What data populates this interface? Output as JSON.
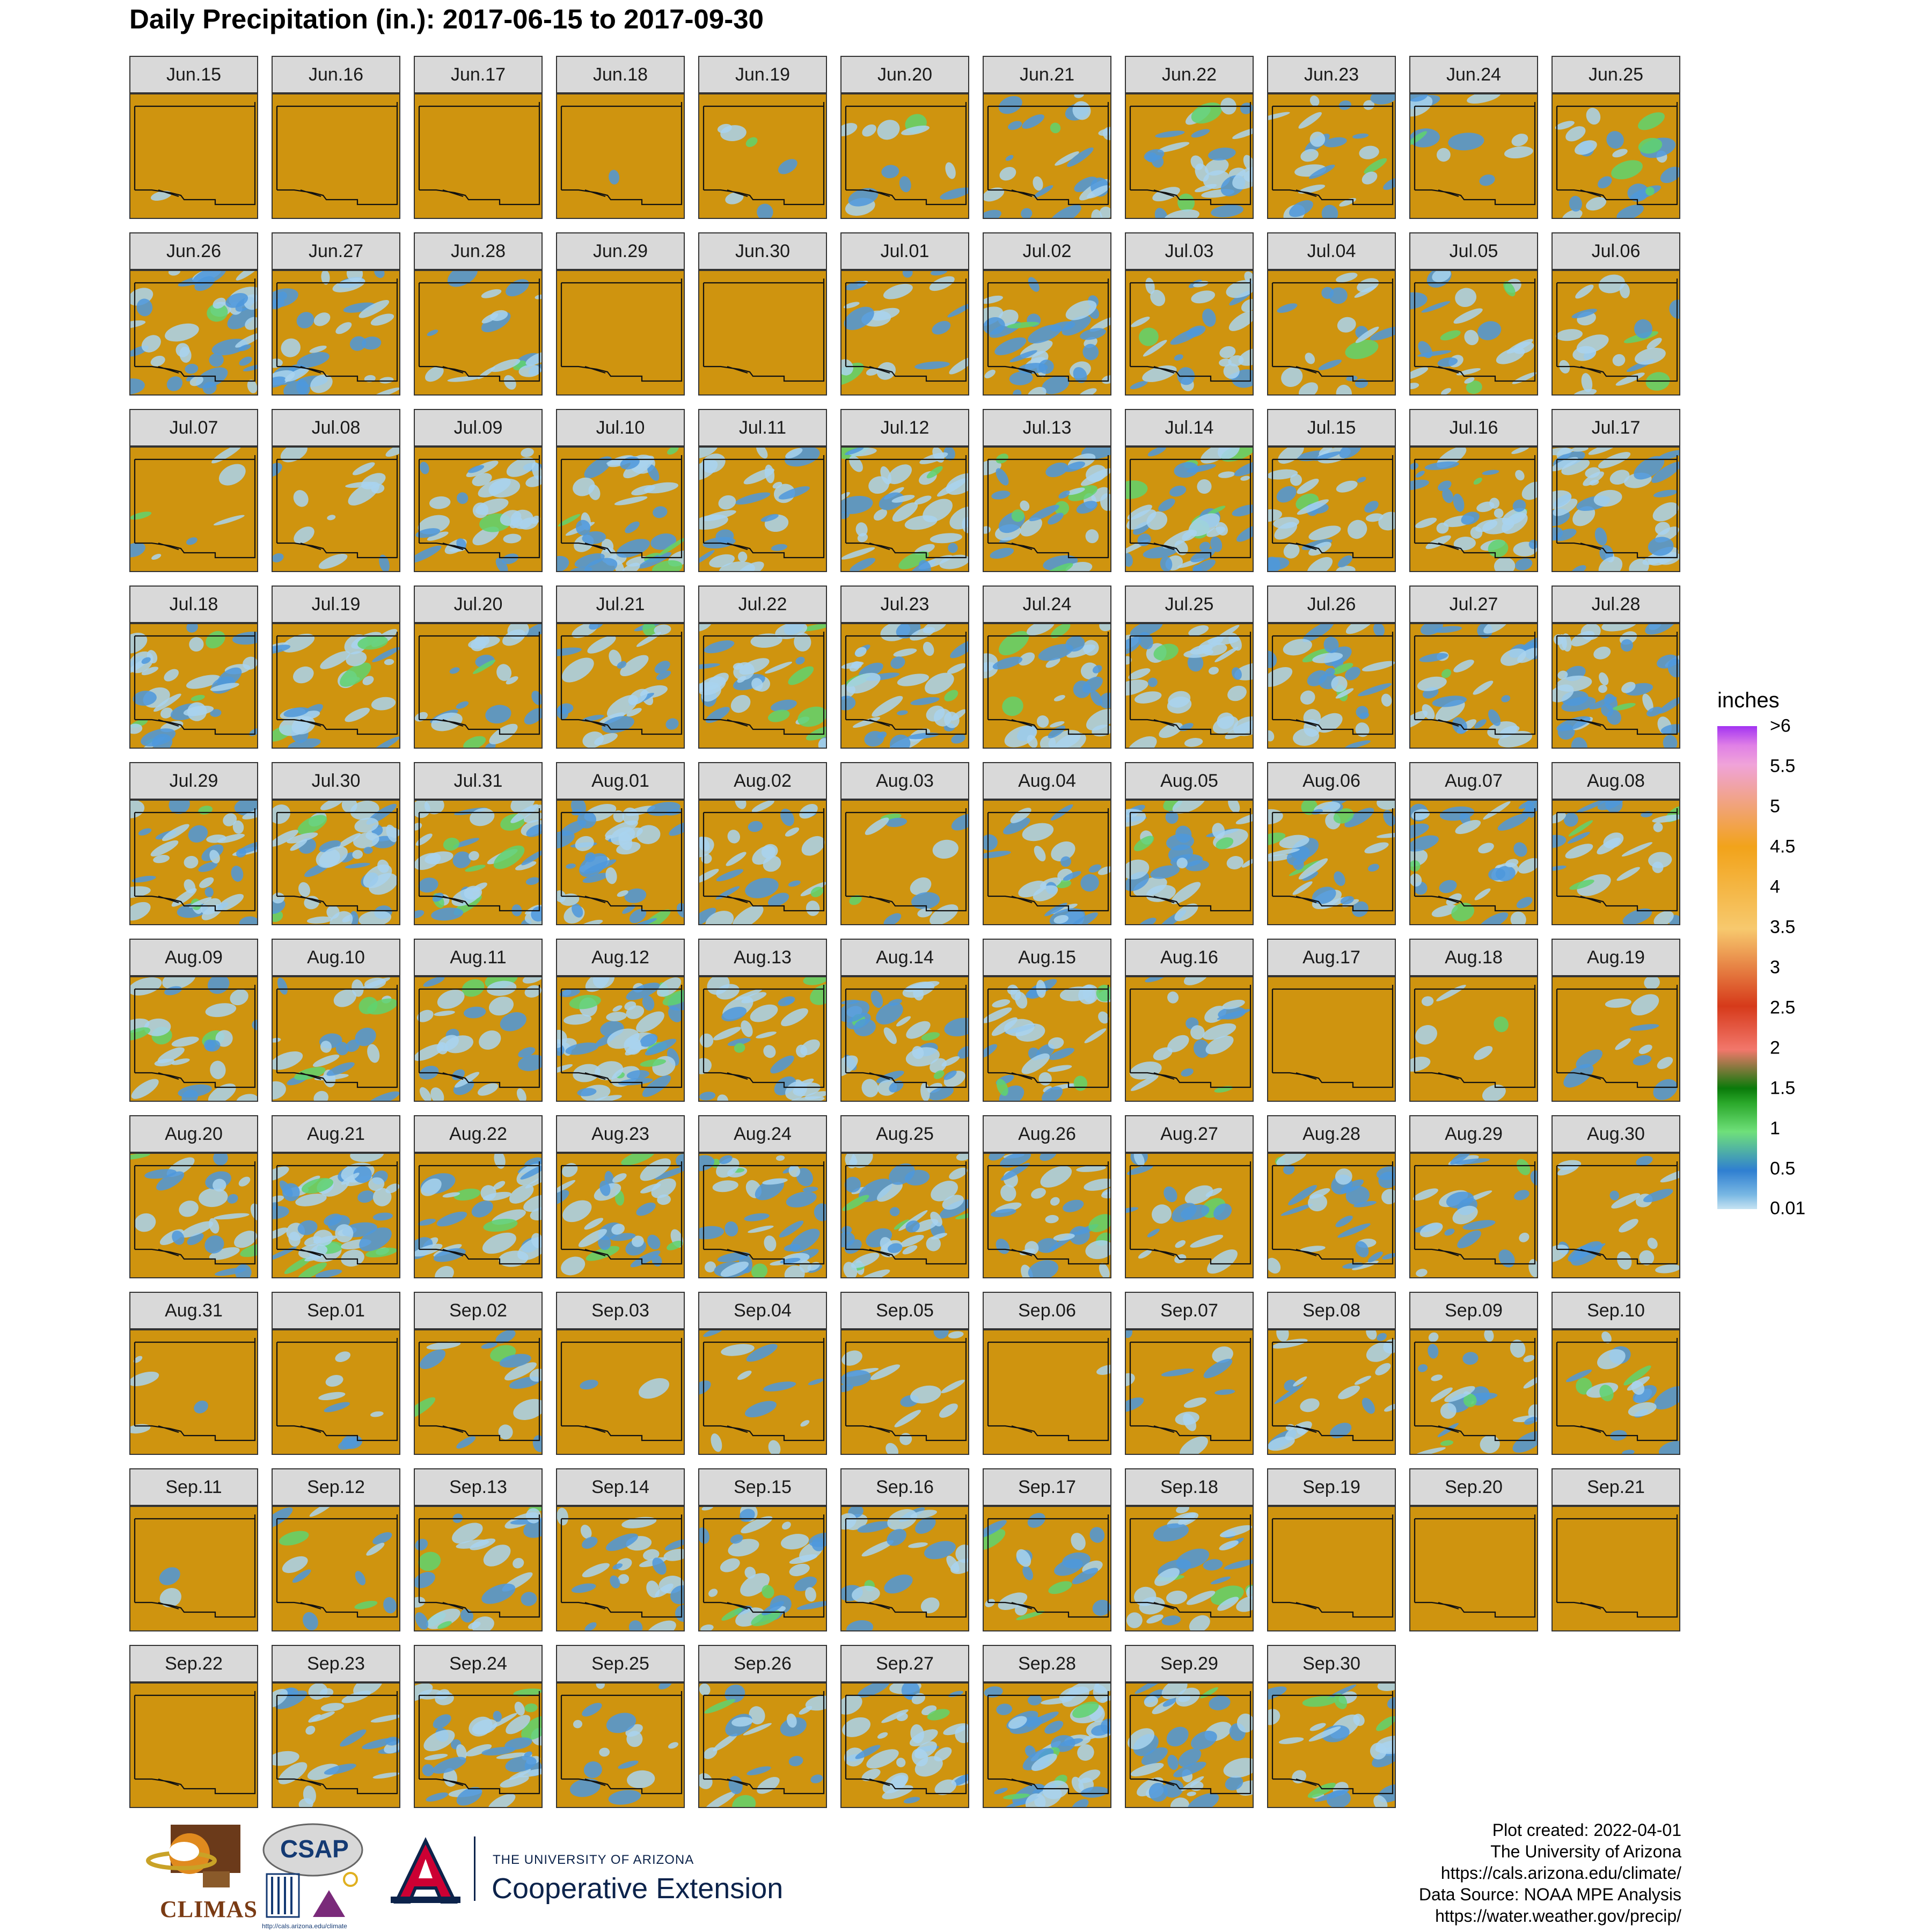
{
  "title": "Daily Precipitation (in.): 2017-06-15 to 2017-09-30",
  "panels": [
    {
      "date": "Jun.15",
      "coverage": 0.02
    },
    {
      "date": "Jun.16",
      "coverage": 0.0
    },
    {
      "date": "Jun.17",
      "coverage": 0.0
    },
    {
      "date": "Jun.18",
      "coverage": 0.01
    },
    {
      "date": "Jun.19",
      "coverage": 0.08
    },
    {
      "date": "Jun.20",
      "coverage": 0.15
    },
    {
      "date": "Jun.21",
      "coverage": 0.35
    },
    {
      "date": "Jun.22",
      "coverage": 0.4
    },
    {
      "date": "Jun.23",
      "coverage": 0.32
    },
    {
      "date": "Jun.24",
      "coverage": 0.15
    },
    {
      "date": "Jun.25",
      "coverage": 0.3
    },
    {
      "date": "Jun.26",
      "coverage": 0.55
    },
    {
      "date": "Jun.27",
      "coverage": 0.45
    },
    {
      "date": "Jun.28",
      "coverage": 0.25
    },
    {
      "date": "Jun.29",
      "coverage": 0.0
    },
    {
      "date": "Jun.30",
      "coverage": 0.0
    },
    {
      "date": "Jul.01",
      "coverage": 0.25
    },
    {
      "date": "Jul.02",
      "coverage": 0.5
    },
    {
      "date": "Jul.03",
      "coverage": 0.4
    },
    {
      "date": "Jul.04",
      "coverage": 0.25
    },
    {
      "date": "Jul.05",
      "coverage": 0.35
    },
    {
      "date": "Jul.06",
      "coverage": 0.3
    },
    {
      "date": "Jul.07",
      "coverage": 0.1
    },
    {
      "date": "Jul.08",
      "coverage": 0.2
    },
    {
      "date": "Jul.09",
      "coverage": 0.45
    },
    {
      "date": "Jul.10",
      "coverage": 0.55
    },
    {
      "date": "Jul.11",
      "coverage": 0.35
    },
    {
      "date": "Jul.12",
      "coverage": 0.55
    },
    {
      "date": "Jul.13",
      "coverage": 0.45
    },
    {
      "date": "Jul.14",
      "coverage": 0.6
    },
    {
      "date": "Jul.15",
      "coverage": 0.45
    },
    {
      "date": "Jul.16",
      "coverage": 0.5
    },
    {
      "date": "Jul.17",
      "coverage": 0.55
    },
    {
      "date": "Jul.18",
      "coverage": 0.5
    },
    {
      "date": "Jul.19",
      "coverage": 0.4
    },
    {
      "date": "Jul.20",
      "coverage": 0.3
    },
    {
      "date": "Jul.21",
      "coverage": 0.4
    },
    {
      "date": "Jul.22",
      "coverage": 0.45
    },
    {
      "date": "Jul.23",
      "coverage": 0.55
    },
    {
      "date": "Jul.24",
      "coverage": 0.45
    },
    {
      "date": "Jul.25",
      "coverage": 0.5
    },
    {
      "date": "Jul.26",
      "coverage": 0.45
    },
    {
      "date": "Jul.27",
      "coverage": 0.4
    },
    {
      "date": "Jul.28",
      "coverage": 0.55
    },
    {
      "date": "Jul.29",
      "coverage": 0.55
    },
    {
      "date": "Jul.30",
      "coverage": 0.6
    },
    {
      "date": "Jul.31",
      "coverage": 0.6
    },
    {
      "date": "Aug.01",
      "coverage": 0.6
    },
    {
      "date": "Aug.02",
      "coverage": 0.4
    },
    {
      "date": "Aug.03",
      "coverage": 0.15
    },
    {
      "date": "Aug.04",
      "coverage": 0.35
    },
    {
      "date": "Aug.05",
      "coverage": 0.45
    },
    {
      "date": "Aug.06",
      "coverage": 0.45
    },
    {
      "date": "Aug.07",
      "coverage": 0.45
    },
    {
      "date": "Aug.08",
      "coverage": 0.35
    },
    {
      "date": "Aug.09",
      "coverage": 0.35
    },
    {
      "date": "Aug.10",
      "coverage": 0.35
    },
    {
      "date": "Aug.11",
      "coverage": 0.4
    },
    {
      "date": "Aug.12",
      "coverage": 0.7
    },
    {
      "date": "Aug.13",
      "coverage": 0.45
    },
    {
      "date": "Aug.14",
      "coverage": 0.5
    },
    {
      "date": "Aug.15",
      "coverage": 0.5
    },
    {
      "date": "Aug.16",
      "coverage": 0.25
    },
    {
      "date": "Aug.17",
      "coverage": 0.0
    },
    {
      "date": "Aug.18",
      "coverage": 0.1
    },
    {
      "date": "Aug.19",
      "coverage": 0.15
    },
    {
      "date": "Aug.20",
      "coverage": 0.35
    },
    {
      "date": "Aug.21",
      "coverage": 0.7
    },
    {
      "date": "Aug.22",
      "coverage": 0.45
    },
    {
      "date": "Aug.23",
      "coverage": 0.45
    },
    {
      "date": "Aug.24",
      "coverage": 0.55
    },
    {
      "date": "Aug.25",
      "coverage": 0.55
    },
    {
      "date": "Aug.26",
      "coverage": 0.45
    },
    {
      "date": "Aug.27",
      "coverage": 0.25
    },
    {
      "date": "Aug.28",
      "coverage": 0.35
    },
    {
      "date": "Aug.29",
      "coverage": 0.3
    },
    {
      "date": "Aug.30",
      "coverage": 0.25
    },
    {
      "date": "Aug.31",
      "coverage": 0.05
    },
    {
      "date": "Sep.01",
      "coverage": 0.1
    },
    {
      "date": "Sep.02",
      "coverage": 0.2
    },
    {
      "date": "Sep.03",
      "coverage": 0.03
    },
    {
      "date": "Sep.04",
      "coverage": 0.15
    },
    {
      "date": "Sep.05",
      "coverage": 0.2
    },
    {
      "date": "Sep.06",
      "coverage": 0.02
    },
    {
      "date": "Sep.07",
      "coverage": 0.15
    },
    {
      "date": "Sep.08",
      "coverage": 0.3
    },
    {
      "date": "Sep.09",
      "coverage": 0.35
    },
    {
      "date": "Sep.10",
      "coverage": 0.25
    },
    {
      "date": "Sep.11",
      "coverage": 0.03
    },
    {
      "date": "Sep.12",
      "coverage": 0.15
    },
    {
      "date": "Sep.13",
      "coverage": 0.35
    },
    {
      "date": "Sep.14",
      "coverage": 0.35
    },
    {
      "date": "Sep.15",
      "coverage": 0.45
    },
    {
      "date": "Sep.16",
      "coverage": 0.3
    },
    {
      "date": "Sep.17",
      "coverage": 0.25
    },
    {
      "date": "Sep.18",
      "coverage": 0.4
    },
    {
      "date": "Sep.19",
      "coverage": 0.0
    },
    {
      "date": "Sep.20",
      "coverage": 0.0
    },
    {
      "date": "Sep.21",
      "coverage": 0.0
    },
    {
      "date": "Sep.22",
      "coverage": 0.0
    },
    {
      "date": "Sep.23",
      "coverage": 0.35
    },
    {
      "date": "Sep.24",
      "coverage": 0.55
    },
    {
      "date": "Sep.25",
      "coverage": 0.2
    },
    {
      "date": "Sep.26",
      "coverage": 0.3
    },
    {
      "date": "Sep.27",
      "coverage": 0.5
    },
    {
      "date": "Sep.28",
      "coverage": 0.65
    },
    {
      "date": "Sep.29",
      "coverage": 0.5
    },
    {
      "date": "Sep.30",
      "coverage": 0.4
    }
  ],
  "legend": {
    "title": "inches",
    "ticks": [
      {
        "label": ">6",
        "value": 6
      },
      {
        "label": "5.5",
        "value": 5.5
      },
      {
        "label": "5",
        "value": 5
      },
      {
        "label": "4.5",
        "value": 4.5
      },
      {
        "label": "4",
        "value": 4
      },
      {
        "label": "3.5",
        "value": 3.5
      },
      {
        "label": "3",
        "value": 3
      },
      {
        "label": "2.5",
        "value": 2.5
      },
      {
        "label": "2",
        "value": 2
      },
      {
        "label": "1.5",
        "value": 1.5
      },
      {
        "label": "1",
        "value": 1
      },
      {
        "label": "0.5",
        "value": 0.5
      },
      {
        "label": "0.01",
        "value": 0.01
      }
    ]
  },
  "credits": {
    "line1": "Plot created: 2022-04-01",
    "line2": "The University of Arizona",
    "line3": "https://cals.arizona.edu/climate/",
    "line4": "Data Source: NOAA MPE Analysis",
    "line5": "https://water.weather.gov/precip/"
  },
  "logos": {
    "climas": "CLIMAS",
    "csap": "CSAP",
    "csap_url": "http://cals.arizona.edu/climate",
    "ua_line1": "THE UNIVERSITY OF ARIZONA",
    "ua_line2": "Cooperative Extension"
  },
  "colors": {
    "dry": "#cf940f",
    "light": "#a9d4ef",
    "mid": "#4d98dc",
    "heavy": "#5fd36e"
  }
}
